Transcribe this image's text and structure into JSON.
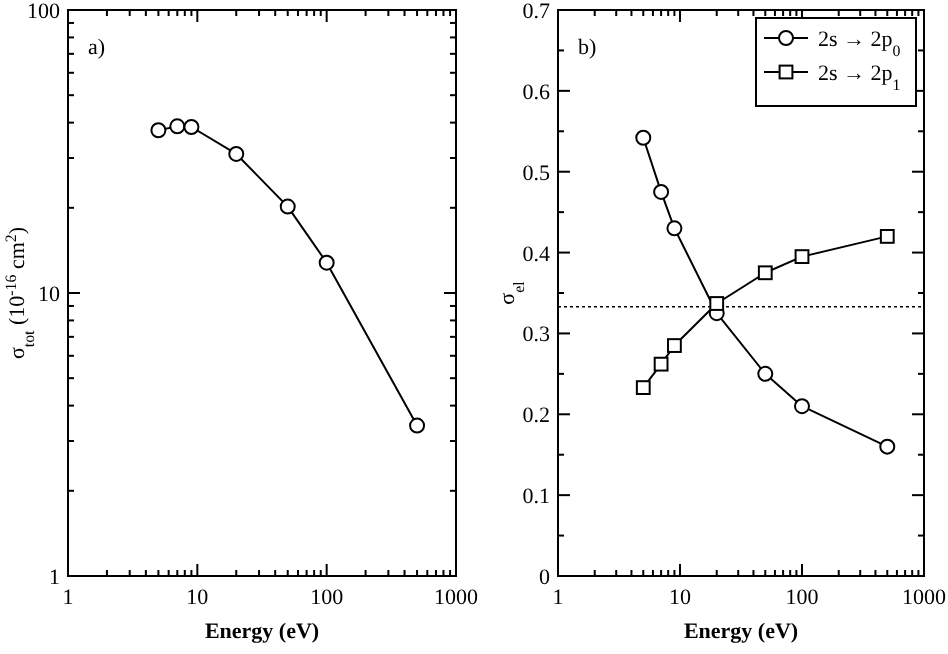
{
  "chart_data": [
    {
      "type": "line",
      "log": "xy",
      "xlabel": "Energy (eV)",
      "ylabel": "σ$_{tot}$ (10$^{-16}$ cm$^{2}$)",
      "annotations": [
        "a)"
      ],
      "marker": "circle",
      "legend": false,
      "xlim": [
        1,
        1000
      ],
      "xticks": [
        1,
        {
          "value": 2,
          "label": null
        },
        {
          "value": 3,
          "label": null
        },
        {
          "value": 4,
          "label": null
        },
        {
          "value": 5,
          "label": null
        },
        {
          "value": 6,
          "label": null
        },
        {
          "value": 7,
          "label": null
        },
        {
          "value": 8,
          "label": null
        },
        {
          "value": 9,
          "label": null
        },
        10,
        {
          "value": 20,
          "label": null
        },
        {
          "value": 30,
          "label": null
        },
        {
          "value": 40,
          "label": null
        },
        {
          "value": 50,
          "label": null
        },
        {
          "value": 60,
          "label": null
        },
        {
          "value": 70,
          "label": null
        },
        {
          "value": 80,
          "label": null
        },
        {
          "value": 90,
          "label": null
        },
        100,
        {
          "value": 200,
          "label": null
        },
        {
          "value": 300,
          "label": null
        },
        {
          "value": 400,
          "label": null
        },
        {
          "value": 500,
          "label": null
        },
        {
          "value": 600,
          "label": null
        },
        {
          "value": 700,
          "label": null
        },
        {
          "value": 800,
          "label": null
        },
        {
          "value": 900,
          "label": null
        },
        1000
      ],
      "ylim": [
        1,
        100
      ],
      "yticks": [
        1,
        {
          "value": 2,
          "label": null
        },
        {
          "value": 3,
          "label": null
        },
        {
          "value": 4,
          "label": null
        },
        {
          "value": 5,
          "label": null
        },
        {
          "value": 6,
          "label": null
        },
        {
          "value": 7,
          "label": null
        },
        {
          "value": 8,
          "label": null
        },
        {
          "value": 9,
          "label": null
        },
        10,
        {
          "value": 20,
          "label": null
        },
        {
          "value": 30,
          "label": null
        },
        {
          "value": 40,
          "label": null
        },
        {
          "value": 50,
          "label": null
        },
        {
          "value": 60,
          "label": null
        },
        {
          "value": 70,
          "label": null
        },
        {
          "value": 80,
          "label": null
        },
        {
          "value": 90,
          "label": null
        },
        100
      ],
      "x": [
        5,
        7,
        9,
        20,
        50,
        100,
        500
      ],
      "series": [
        {
          "color": "#000000",
          "values": [
            37.6,
            38.8,
            38.6,
            31,
            20.2,
            12.8,
            3.4
          ]
        }
      ]
    },
    {
      "type": "line",
      "log": "x",
      "xlabel": "Energy (eV)",
      "ylabel": "σ$_{el}$",
      "annotations": [
        "b)"
      ],
      "legend": "top right",
      "xlim": [
        1,
        1000
      ],
      "xticks": [
        1,
        {
          "value": 2,
          "label": null
        },
        {
          "value": 3,
          "label": null
        },
        {
          "value": 4,
          "label": null
        },
        {
          "value": 5,
          "label": null
        },
        {
          "value": 6,
          "label": null
        },
        {
          "value": 7,
          "label": null
        },
        {
          "value": 8,
          "label": null
        },
        {
          "value": 9,
          "label": null
        },
        10,
        {
          "value": 20,
          "label": null
        },
        {
          "value": 30,
          "label": null
        },
        {
          "value": 40,
          "label": null
        },
        {
          "value": 50,
          "label": null
        },
        {
          "value": 60,
          "label": null
        },
        {
          "value": 70,
          "label": null
        },
        {
          "value": 80,
          "label": null
        },
        {
          "value": 90,
          "label": null
        },
        100,
        {
          "value": 200,
          "label": null
        },
        {
          "value": 300,
          "label": null
        },
        {
          "value": 400,
          "label": null
        },
        {
          "value": 500,
          "label": null
        },
        {
          "value": 600,
          "label": null
        },
        {
          "value": 700,
          "label": null
        },
        {
          "value": 800,
          "label": null
        },
        {
          "value": 900,
          "label": null
        },
        1000
      ],
      "ylim": [
        0,
        0.7
      ],
      "yticks": [
        0,
        {
          "value": 0.05,
          "label": null
        },
        0.1,
        {
          "value": 0.15,
          "label": null
        },
        0.2,
        {
          "value": 0.25,
          "label": null
        },
        0.3,
        {
          "value": 0.35,
          "label": null
        },
        0.4,
        {
          "value": 0.45,
          "label": null
        },
        0.5,
        {
          "value": 0.55,
          "label": null
        },
        0.6,
        {
          "value": 0.65,
          "label": null
        },
        0.7
      ],
      "x": [
        5,
        7,
        9,
        20,
        50,
        100,
        500
      ],
      "series": [
        {
          "name": "2s → 2p$_{0}$",
          "color": "#000000",
          "marker": "circle",
          "values": [
            0.542,
            0.475,
            0.43,
            0.325,
            0.25,
            0.21,
            0.16
          ]
        },
        {
          "name": "2s → 2p$_{1}$",
          "color": "#000000",
          "marker": "square",
          "values": [
            0.233,
            0.262,
            0.285,
            0.337,
            0.375,
            0.395,
            0.42
          ]
        }
      ],
      "ref_lines": [
        {
          "axis": "y",
          "value": 0.333,
          "label": null,
          "line_style": "dotted",
          "color": "#000000"
        }
      ]
    }
  ]
}
